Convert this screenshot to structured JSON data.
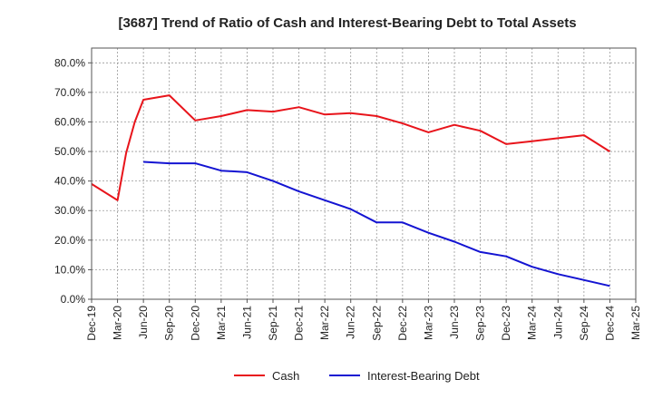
{
  "chart_data": {
    "type": "line",
    "title": "[3687]  Trend of Ratio of Cash and Interest-Bearing Debt to Total Assets",
    "xlabel": "",
    "ylabel": "",
    "y_unit": "%",
    "ylim": [
      0,
      85
    ],
    "y_ticks": [
      0,
      10,
      20,
      30,
      40,
      50,
      60,
      70,
      80
    ],
    "y_tick_labels": [
      "0.0%",
      "10.0%",
      "20.0%",
      "30.0%",
      "40.0%",
      "50.0%",
      "60.0%",
      "70.0%",
      "80.0%"
    ],
    "x_tick_labels": [
      "Dec-19",
      "Mar-20",
      "Jun-20",
      "Sep-20",
      "Dec-20",
      "Mar-21",
      "Jun-21",
      "Sep-21",
      "Dec-21",
      "Mar-22",
      "Jun-22",
      "Sep-22",
      "Dec-22",
      "Mar-23",
      "Jun-23",
      "Sep-23",
      "Dec-23",
      "Mar-24",
      "Jun-24",
      "Sep-24",
      "Dec-24",
      "Mar-25"
    ],
    "grid": true,
    "legend_position": "bottom",
    "series": [
      {
        "name": "Cash",
        "color": "#e8141b",
        "x": [
          "Dec-19",
          "Mar-20",
          "Apr-20",
          "May-20",
          "Jun-20",
          "Sep-20",
          "Dec-20",
          "Mar-21",
          "Jun-21",
          "Sep-21",
          "Dec-21",
          "Mar-22",
          "Jun-22",
          "Sep-22",
          "Dec-22",
          "Mar-23",
          "Jun-23",
          "Sep-23",
          "Dec-23",
          "Mar-24",
          "Jun-24",
          "Sep-24",
          "Dec-24"
        ],
        "values": [
          39.0,
          33.5,
          49.5,
          60.0,
          67.5,
          69.0,
          60.5,
          62.0,
          64.0,
          63.5,
          65.0,
          62.5,
          63.0,
          62.0,
          59.5,
          56.5,
          59.0,
          57.0,
          52.5,
          53.5,
          54.5,
          55.5,
          50.0
        ]
      },
      {
        "name": "Interest-Bearing Debt",
        "color": "#1414d2",
        "x": [
          "Jun-20",
          "Sep-20",
          "Dec-20",
          "Mar-21",
          "Jun-21",
          "Sep-21",
          "Dec-21",
          "Mar-22",
          "Jun-22",
          "Sep-22",
          "Dec-22",
          "Mar-23",
          "Jun-23",
          "Sep-23",
          "Dec-23",
          "Mar-24",
          "Jun-24",
          "Sep-24",
          "Dec-24"
        ],
        "values": [
          46.5,
          46.0,
          46.0,
          43.5,
          43.0,
          40.0,
          36.5,
          33.5,
          30.5,
          26.0,
          26.0,
          22.5,
          19.5,
          16.0,
          14.5,
          11.0,
          8.5,
          6.5,
          4.5
        ]
      }
    ]
  }
}
